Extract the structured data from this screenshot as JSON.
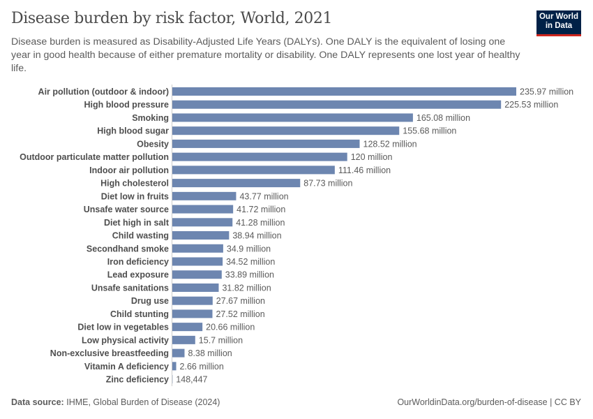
{
  "header": {
    "title": "Disease burden by risk factor, World, 2021",
    "subtitle": "Disease burden is measured as Disability-Adjusted Life Years (DALYs). One DALY is the equivalent of losing one year in good health because of either premature mortality or disability. One DALY represents one lost year of healthy life.",
    "logo_line1": "Our World",
    "logo_line2": "in Data"
  },
  "footer": {
    "source_label": "Data source:",
    "source": "IHME, Global Burden of Disease (2024)",
    "url": "OurWorldinData.org/burden-of-disease | CC BY"
  },
  "colors": {
    "bar": "#6d86b0",
    "logo_bg": "#002147",
    "logo_accent": "#ce261e"
  },
  "chart_data": {
    "type": "bar",
    "orientation": "horizontal",
    "title": "Disease burden by risk factor, World, 2021",
    "unit": "DALYs",
    "categories": [
      "Air pollution (outdoor & indoor)",
      "High blood pressure",
      "Smoking",
      "High blood sugar",
      "Obesity",
      "Outdoor particulate matter pollution",
      "Indoor air pollution",
      "High cholesterol",
      "Diet low in fruits",
      "Unsafe water source",
      "Diet high in salt",
      "Child wasting",
      "Secondhand smoke",
      "Iron deficiency",
      "Lead exposure",
      "Unsafe sanitations",
      "Drug use",
      "Child stunting",
      "Diet low in vegetables",
      "Low physical activity",
      "Non-exclusive breastfeeding",
      "Vitamin A deficiency",
      "Zinc deficiency"
    ],
    "values": [
      235970000,
      225530000,
      165080000,
      155680000,
      128520000,
      120000000,
      111460000,
      87730000,
      43770000,
      41720000,
      41280000,
      38940000,
      34900000,
      34520000,
      33890000,
      31820000,
      27670000,
      27520000,
      20660000,
      15700000,
      8380000,
      2660000,
      148447
    ],
    "labels": [
      "235.97 million",
      "225.53 million",
      "165.08 million",
      "155.68 million",
      "128.52 million",
      "120 million",
      "111.46 million",
      "87.73 million",
      "43.77 million",
      "41.72 million",
      "41.28 million",
      "38.94 million",
      "34.9 million",
      "34.52 million",
      "33.89 million",
      "31.82 million",
      "27.67 million",
      "27.52 million",
      "20.66 million",
      "15.7 million",
      "8.38 million",
      "2.66 million",
      "148,447"
    ],
    "grid": false,
    "legend": "none"
  }
}
